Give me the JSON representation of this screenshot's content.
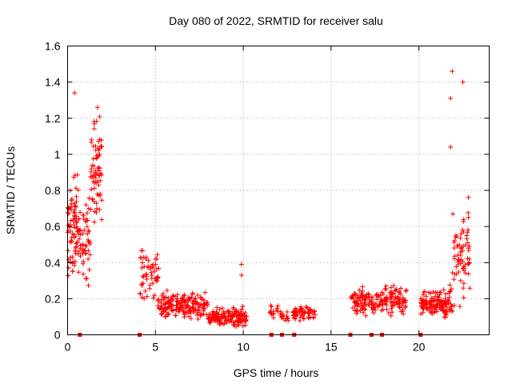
{
  "chart_data": {
    "type": "scatter",
    "title": "Day 080 of 2022, SRMTID for receiver salu",
    "xlabel": "GPS time / hours",
    "ylabel": "SRMTID / TECUs",
    "xlim": [
      0,
      24
    ],
    "ylim": [
      0,
      1.6
    ],
    "x_ticks": [
      0,
      5,
      10,
      15,
      20
    ],
    "y_ticks": [
      0,
      0.2,
      0.4,
      0.6,
      0.8,
      1,
      1.2,
      1.4,
      1.6
    ],
    "x_tick_labels": [
      "0",
      "5",
      "10",
      "15",
      "20"
    ],
    "y_tick_labels": [
      "0",
      "0.2",
      "0.4",
      "0.6",
      "0.8",
      "1",
      "1.2",
      "1.4",
      "1.6"
    ],
    "grid": true,
    "marker": "+",
    "color": "#ff0000",
    "zero_markers_x": [
      0.7,
      4.1,
      11.6,
      12.2,
      12.9,
      16.1,
      17.3,
      17.9,
      20.1
    ],
    "clusters": [
      {
        "x_start": 0.0,
        "x_end": 0.6,
        "y_base": 0.58,
        "spread": 0.45,
        "count": 75
      },
      {
        "x_start": 0.6,
        "x_end": 1.3,
        "y_base": 0.52,
        "spread": 0.32,
        "count": 60
      },
      {
        "x_start": 1.3,
        "x_end": 1.95,
        "y_base": 0.9,
        "spread": 0.4,
        "count": 70
      },
      {
        "x_start": 4.1,
        "x_end": 5.2,
        "y_base": 0.33,
        "spread": 0.22,
        "count": 60
      },
      {
        "x_start": 5.2,
        "x_end": 8.0,
        "y_base": 0.16,
        "spread": 0.1,
        "count": 180
      },
      {
        "x_start": 8.0,
        "x_end": 10.2,
        "y_base": 0.1,
        "spread": 0.07,
        "count": 150
      },
      {
        "x_start": 11.5,
        "x_end": 12.0,
        "y_base": 0.13,
        "spread": 0.05,
        "count": 15
      },
      {
        "x_start": 12.1,
        "x_end": 12.6,
        "y_base": 0.1,
        "spread": 0.05,
        "count": 15
      },
      {
        "x_start": 12.8,
        "x_end": 14.1,
        "y_base": 0.12,
        "spread": 0.06,
        "count": 60
      },
      {
        "x_start": 16.1,
        "x_end": 18.0,
        "y_base": 0.18,
        "spread": 0.1,
        "count": 110
      },
      {
        "x_start": 18.0,
        "x_end": 19.3,
        "y_base": 0.2,
        "spread": 0.11,
        "count": 80
      },
      {
        "x_start": 20.1,
        "x_end": 21.9,
        "y_base": 0.18,
        "spread": 0.11,
        "count": 140
      },
      {
        "x_start": 21.9,
        "x_end": 22.9,
        "y_base": 0.45,
        "spread": 0.35,
        "count": 70
      }
    ],
    "outliers": [
      {
        "x": 0.4,
        "y": 1.34
      },
      {
        "x": 1.7,
        "y": 1.26
      },
      {
        "x": 21.9,
        "y": 1.46
      },
      {
        "x": 22.5,
        "y": 1.4
      },
      {
        "x": 21.8,
        "y": 1.31
      },
      {
        "x": 21.8,
        "y": 1.04
      },
      {
        "x": 9.9,
        "y": 0.39
      },
      {
        "x": 9.9,
        "y": 0.33
      }
    ]
  }
}
